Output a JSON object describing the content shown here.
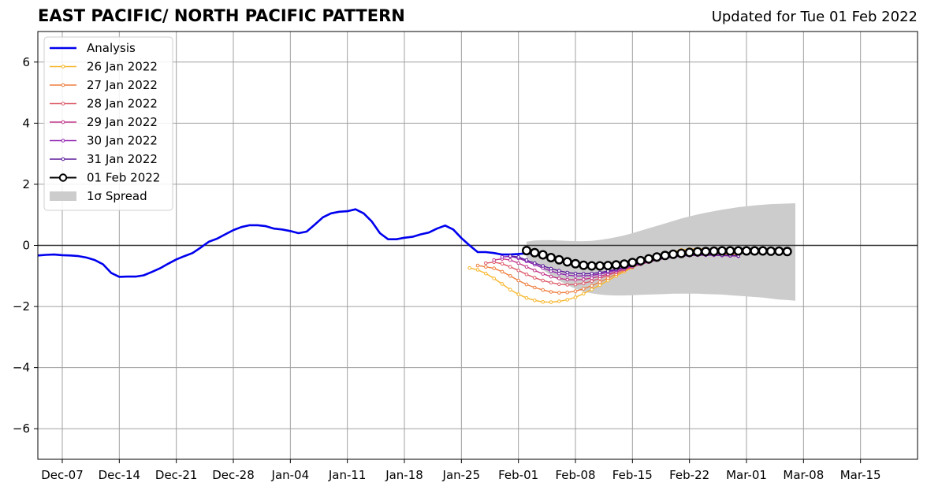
{
  "chart_data": {
    "type": "line",
    "title": "EAST PACIFIC/ NORTH PACIFIC PATTERN",
    "subtitle": "Updated for Tue 01 Feb 2022",
    "xlabel": "",
    "ylabel": "",
    "x_axis": {
      "start": "2021-12-04",
      "end": "2022-03-22",
      "ticks": [
        {
          "date": "2021-12-07",
          "label": "Dec-07"
        },
        {
          "date": "2021-12-14",
          "label": "Dec-14"
        },
        {
          "date": "2021-12-21",
          "label": "Dec-21"
        },
        {
          "date": "2021-12-28",
          "label": "Dec-28"
        },
        {
          "date": "2022-01-04",
          "label": "Jan-04"
        },
        {
          "date": "2022-01-11",
          "label": "Jan-11"
        },
        {
          "date": "2022-01-18",
          "label": "Jan-18"
        },
        {
          "date": "2022-01-25",
          "label": "Jan-25"
        },
        {
          "date": "2022-02-01",
          "label": "Feb-01"
        },
        {
          "date": "2022-02-08",
          "label": "Feb-08"
        },
        {
          "date": "2022-02-15",
          "label": "Feb-15"
        },
        {
          "date": "2022-02-22",
          "label": "Feb-22"
        },
        {
          "date": "2022-03-01",
          "label": "Mar-01"
        },
        {
          "date": "2022-03-08",
          "label": "Mar-08"
        },
        {
          "date": "2022-03-15",
          "label": "Mar-15"
        }
      ]
    },
    "ylim": [
      -7,
      7
    ],
    "y_ticks": [
      {
        "value": -6,
        "label": "−6"
      },
      {
        "value": -4,
        "label": "−4"
      },
      {
        "value": -2,
        "label": "−2"
      },
      {
        "value": 0,
        "label": "0"
      },
      {
        "value": 2,
        "label": "2"
      },
      {
        "value": 4,
        "label": "4"
      },
      {
        "value": 6,
        "label": "6"
      }
    ],
    "grid": true,
    "zero_line": true,
    "legend": {
      "placement": "top-left",
      "entries": [
        "Analysis",
        "26 Jan 2022",
        "27 Jan 2022",
        "28 Jan 2022",
        "29 Jan 2022",
        "30 Jan 2022",
        "31 Jan 2022",
        "01 Feb 2022",
        "1σ Spread"
      ]
    },
    "analysis": {
      "name": "Analysis",
      "color": "#0000ee",
      "start_date": "2021-12-04",
      "values": [
        -0.33,
        -0.31,
        -0.3,
        -0.32,
        -0.33,
        -0.35,
        -0.4,
        -0.48,
        -0.62,
        -0.9,
        -1.03,
        -1.02,
        -1.02,
        -0.98,
        -0.87,
        -0.75,
        -0.6,
        -0.46,
        -0.35,
        -0.25,
        -0.07,
        0.12,
        0.22,
        0.36,
        0.5,
        0.6,
        0.66,
        0.66,
        0.63,
        0.55,
        0.52,
        0.47,
        0.4,
        0.45,
        0.68,
        0.92,
        1.05,
        1.1,
        1.12,
        1.18,
        1.05,
        0.78,
        0.4,
        0.2,
        0.2,
        0.25,
        0.28,
        0.36,
        0.42,
        0.55,
        0.65,
        0.52,
        0.24,
        0.0,
        -0.22,
        -0.22,
        -0.25,
        -0.3,
        -0.3,
        -0.28,
        -0.26,
        -0.28,
        -0.32,
        -0.4
      ]
    },
    "forecasts": [
      {
        "name": "26 Jan 2022",
        "color": "#f8b62b",
        "start_date": "2022-01-26",
        "values": [
          -0.74,
          -0.8,
          -0.92,
          -1.08,
          -1.26,
          -1.45,
          -1.6,
          -1.72,
          -1.8,
          -1.85,
          -1.86,
          -1.83,
          -1.78,
          -1.7,
          -1.58,
          -1.44,
          -1.3,
          -1.15,
          -1.0,
          -0.86,
          -0.73,
          -0.6,
          -0.49,
          -0.38,
          -0.29,
          -0.21,
          -0.15,
          -0.12,
          -0.11,
          -0.12,
          -0.15,
          -0.18,
          -0.2,
          -0.22
        ]
      },
      {
        "name": "27 Jan 2022",
        "color": "#ef7e3e",
        "start_date": "2022-01-27",
        "values": [
          -0.66,
          -0.7,
          -0.75,
          -0.86,
          -1.0,
          -1.15,
          -1.28,
          -1.38,
          -1.46,
          -1.52,
          -1.55,
          -1.54,
          -1.5,
          -1.42,
          -1.32,
          -1.2,
          -1.07,
          -0.94,
          -0.82,
          -0.7,
          -0.6,
          -0.51,
          -0.43,
          -0.37,
          -0.32,
          -0.28,
          -0.25,
          -0.24,
          -0.24,
          -0.26,
          -0.28,
          -0.3,
          -0.31
        ]
      },
      {
        "name": "28 Jan 2022",
        "color": "#dd5a69",
        "start_date": "2022-01-28",
        "values": [
          -0.58,
          -0.55,
          -0.6,
          -0.7,
          -0.82,
          -0.95,
          -1.06,
          -1.15,
          -1.22,
          -1.27,
          -1.29,
          -1.28,
          -1.24,
          -1.17,
          -1.08,
          -0.98,
          -0.88,
          -0.78,
          -0.69,
          -0.6,
          -0.52,
          -0.45,
          -0.4,
          -0.36,
          -0.33,
          -0.31,
          -0.3,
          -0.3,
          -0.31,
          -0.32,
          -0.33,
          -0.34
        ]
      },
      {
        "name": "29 Jan 2022",
        "color": "#c2368a",
        "start_date": "2022-01-29",
        "values": [
          -0.48,
          -0.44,
          -0.48,
          -0.58,
          -0.7,
          -0.82,
          -0.93,
          -1.02,
          -1.08,
          -1.12,
          -1.13,
          -1.11,
          -1.07,
          -1.01,
          -0.94,
          -0.86,
          -0.78,
          -0.7,
          -0.62,
          -0.55,
          -0.48,
          -0.42,
          -0.38,
          -0.35,
          -0.33,
          -0.32,
          -0.32,
          -0.32,
          -0.33,
          -0.34,
          -0.35
        ]
      },
      {
        "name": "30 Jan 2022",
        "color": "#9224b0",
        "start_date": "2022-01-30",
        "values": [
          -0.38,
          -0.36,
          -0.42,
          -0.52,
          -0.63,
          -0.74,
          -0.84,
          -0.92,
          -0.97,
          -1.0,
          -1.0,
          -0.98,
          -0.94,
          -0.88,
          -0.81,
          -0.74,
          -0.67,
          -0.6,
          -0.53,
          -0.47,
          -0.42,
          -0.38,
          -0.35,
          -0.33,
          -0.32,
          -0.32,
          -0.32,
          -0.33,
          -0.34,
          -0.35
        ]
      },
      {
        "name": "31 Jan 2022",
        "color": "#5b1a9c",
        "start_date": "2022-01-31",
        "values": [
          -0.35,
          -0.38,
          -0.48,
          -0.58,
          -0.67,
          -0.76,
          -0.83,
          -0.89,
          -0.92,
          -0.93,
          -0.92,
          -0.89,
          -0.84,
          -0.78,
          -0.72,
          -0.65,
          -0.58,
          -0.52,
          -0.46,
          -0.41,
          -0.37,
          -0.34,
          -0.32,
          -0.31,
          -0.31,
          -0.31,
          -0.32,
          -0.33,
          -0.34
        ]
      },
      {
        "name": "01 Feb 2022",
        "color": "#000000",
        "start_date": "2022-02-02",
        "values": [
          -0.17,
          -0.24,
          -0.31,
          -0.4,
          -0.47,
          -0.54,
          -0.6,
          -0.65,
          -0.67,
          -0.67,
          -0.66,
          -0.64,
          -0.61,
          -0.56,
          -0.5,
          -0.44,
          -0.38,
          -0.33,
          -0.29,
          -0.26,
          -0.23,
          -0.21,
          -0.2,
          -0.19,
          -0.18,
          -0.18,
          -0.18,
          -0.18,
          -0.18,
          -0.18,
          -0.19,
          -0.19,
          -0.2
        ]
      }
    ],
    "spread": {
      "name": "1σ Spread",
      "color": "#cccccc",
      "start_date": "2022-02-02",
      "upper": [
        0.12,
        0.16,
        0.17,
        0.17,
        0.16,
        0.15,
        0.14,
        0.14,
        0.15,
        0.18,
        0.22,
        0.27,
        0.33,
        0.4,
        0.48,
        0.56,
        0.64,
        0.72,
        0.8,
        0.88,
        0.95,
        1.01,
        1.07,
        1.12,
        1.17,
        1.21,
        1.25,
        1.28,
        1.31,
        1.33,
        1.35,
        1.36,
        1.37,
        1.38
      ],
      "lower": [
        -0.4,
        -0.6,
        -0.8,
        -0.98,
        -1.15,
        -1.3,
        -1.42,
        -1.51,
        -1.57,
        -1.61,
        -1.63,
        -1.64,
        -1.64,
        -1.63,
        -1.62,
        -1.61,
        -1.6,
        -1.59,
        -1.58,
        -1.58,
        -1.58,
        -1.58,
        -1.59,
        -1.6,
        -1.61,
        -1.63,
        -1.65,
        -1.67,
        -1.69,
        -1.71,
        -1.74,
        -1.77,
        -1.79,
        -1.81
      ]
    }
  }
}
